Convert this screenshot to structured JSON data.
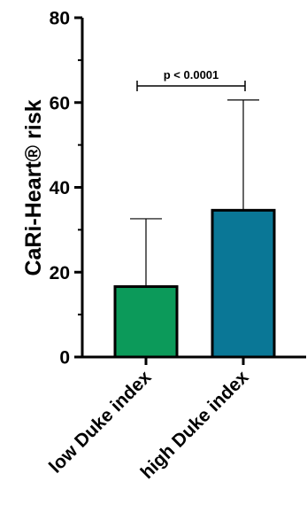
{
  "chart_data": {
    "type": "bar",
    "ylabel": "CaRi-Heart® risk",
    "ylim": [
      0,
      80
    ],
    "y_ticks": [
      "0",
      "20",
      "40",
      "60",
      "80"
    ],
    "categories": [
      "low Duke index",
      "high Duke index"
    ],
    "values": [
      16.6,
      34.6
    ],
    "error_upper": [
      32.6,
      60.6
    ],
    "bar_colors": [
      "#0c9a5a",
      "#0a7796"
    ],
    "annotation": {
      "text": "p < 0.0001",
      "from": 0,
      "to": 1
    }
  }
}
